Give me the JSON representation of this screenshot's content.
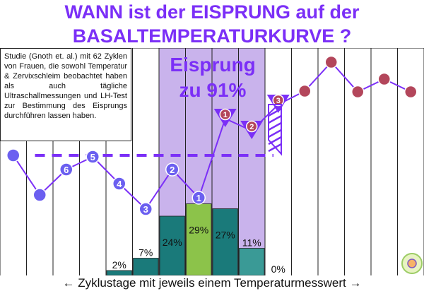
{
  "title_line1": "WANN ist der EISPRUNG auf der",
  "title_line2": "BASALTEMPERATURKURVE ?",
  "info_text": "Studie (Gnoth et. al.) mit 62 Zyklen von Frauen, die sowohl Temperatur & Zervixschleim beobachtet haben als auch tägliche Ultraschallmessungen und LH-Test zur Bestimmung des Eisprungs durchführen lassen haben.",
  "highlight_label_1": "Eisprung",
  "highlight_label_2": "zu 91%",
  "x_axis_label": "← Zyklustage mit jeweils einem Temperaturmesswert →",
  "colors": {
    "title": "#7b2ff7",
    "highlight": "#c9b3ec",
    "pre_curve": "#6b5ff0",
    "post_curve": "#b3465b",
    "bar_teal": "#1a7a7a",
    "bar_light_teal": "#3a9a96",
    "bar_green": "#8cc34a",
    "line": "#7b2ff7"
  },
  "chart_data": {
    "type": "bar",
    "xlabel": "← Zyklustage mit jeweils einem Temperaturmesswert →",
    "bars": [
      {
        "day": 5,
        "value": 2,
        "label": "2%"
      },
      {
        "day": 6,
        "value": 7,
        "label": "7%"
      },
      {
        "day": 7,
        "value": 24,
        "label": "24%"
      },
      {
        "day": 8,
        "value": 29,
        "label": "29%"
      },
      {
        "day": 9,
        "value": 27,
        "label": "27%"
      },
      {
        "day": 10,
        "value": 11,
        "label": "11%"
      },
      {
        "day": 11,
        "value": 0,
        "label": "0%"
      }
    ],
    "highlight_days": [
      7,
      8,
      9,
      10
    ],
    "temperature_curve": {
      "pre": [
        {
          "day": 1,
          "label": ""
        },
        {
          "day": 2,
          "label": ""
        },
        {
          "day": 3,
          "label": "6"
        },
        {
          "day": 4,
          "label": "5"
        },
        {
          "day": 5,
          "label": "4"
        },
        {
          "day": 6,
          "label": "3"
        },
        {
          "day": 7,
          "label": "2"
        },
        {
          "day": 8,
          "label": "1"
        }
      ],
      "post": [
        {
          "day": 9,
          "label": "1"
        },
        {
          "day": 10,
          "label": "2"
        },
        {
          "day": 11,
          "label": "3"
        },
        {
          "day": 12,
          "label": ""
        },
        {
          "day": 13,
          "label": ""
        },
        {
          "day": 14,
          "label": ""
        },
        {
          "day": 15,
          "label": ""
        },
        {
          "day": 16,
          "label": ""
        }
      ]
    },
    "cover_line": "dashed line above the six lower values"
  }
}
